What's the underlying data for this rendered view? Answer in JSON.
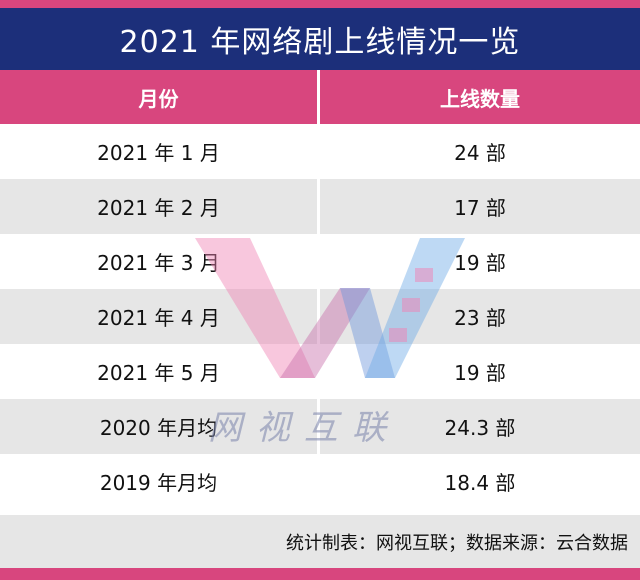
{
  "title": "2021 年网络剧上线情况一览",
  "table": {
    "headers": [
      "月份",
      "上线数量"
    ],
    "rows": [
      [
        "2021 年 1 月",
        "24 部"
      ],
      [
        "2021 年 2 月",
        "17 部"
      ],
      [
        "2021 年 3 月",
        "19 部"
      ],
      [
        "2021 年 4 月",
        "23 部"
      ],
      [
        "2021 年 5 月",
        "19 部"
      ],
      [
        "2020 年月均",
        "24.3 部"
      ],
      [
        "2019 年月均",
        "18.4 部"
      ]
    ]
  },
  "footer": "统计制表：网视互联；数据来源：云合数据",
  "watermark": {
    "text": "网视互联",
    "logo": "W-logo"
  },
  "colors": {
    "title_bg": "#1c2f7a",
    "header_bg": "#d8467e",
    "stripe": "#e6e6e6"
  }
}
